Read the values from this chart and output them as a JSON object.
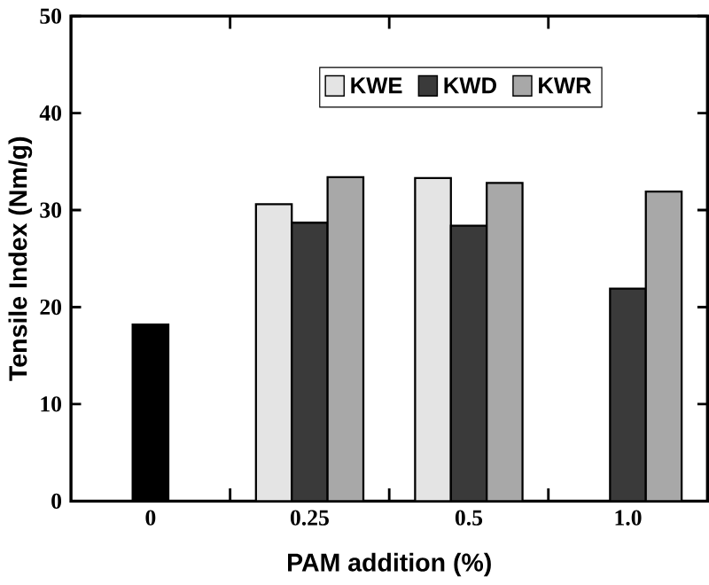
{
  "chart_data": {
    "type": "bar",
    "xlabel": "PAM addition (%)",
    "ylabel": "Tensile Index (Nm/g)",
    "categories": [
      "0",
      "0.25",
      "0.5",
      "1.0"
    ],
    "series": [
      {
        "name": "KWE",
        "color": "#e4e4e4",
        "values": [
          null,
          30.6,
          33.3,
          null
        ]
      },
      {
        "name": "KWD",
        "color": "#3a3a3a",
        "values": [
          null,
          28.7,
          28.4,
          21.9
        ]
      },
      {
        "name": "KWR",
        "color": "#a8a8a8",
        "values": [
          null,
          33.4,
          32.8,
          31.9
        ]
      },
      {
        "color": "#000000",
        "values": [
          18.2,
          null,
          null,
          null
        ]
      }
    ],
    "ylim": [
      0,
      50
    ],
    "yticks": [
      0,
      10,
      20,
      30,
      40,
      50
    ],
    "grid": false,
    "legend": "top"
  }
}
